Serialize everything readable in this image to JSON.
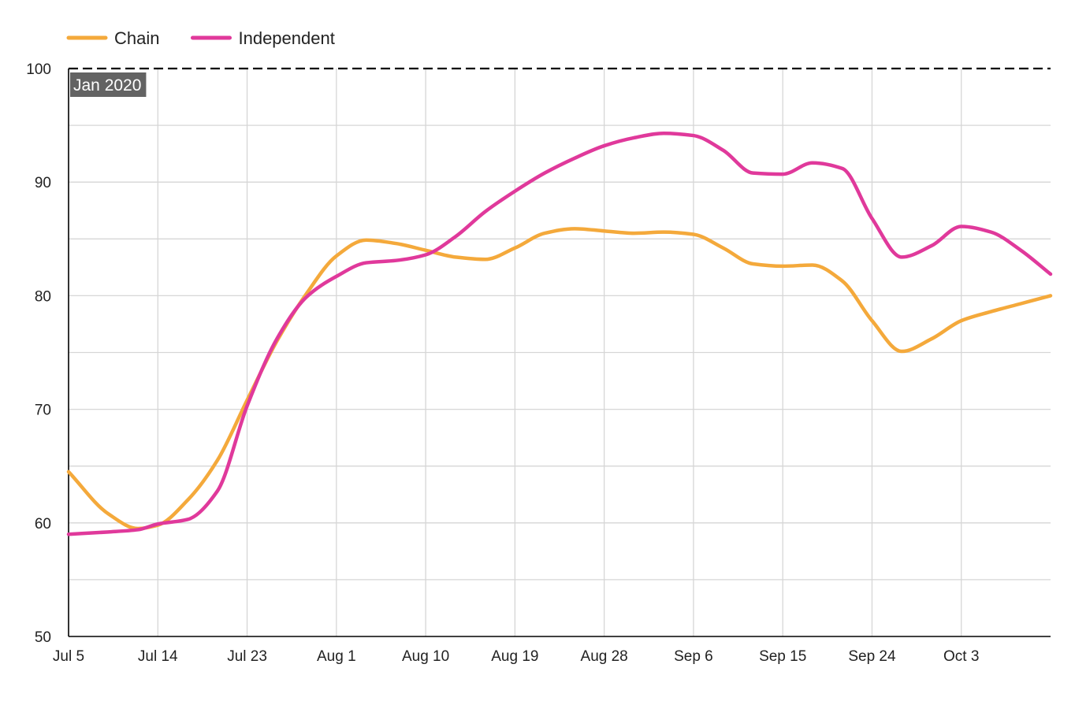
{
  "chart_data": {
    "type": "line",
    "title": "",
    "xlabel": "",
    "ylabel": "",
    "x_tick_labels": [
      "Jul 5",
      "Jul 14",
      "Jul 23",
      "Aug 1",
      "Aug 10",
      "Aug 19",
      "Aug 28",
      "Sep 6",
      "Sep 15",
      "Sep 24",
      "Oct 3"
    ],
    "x": [
      "2020-07-05",
      "2020-07-09",
      "2020-07-12",
      "2020-07-14",
      "2020-07-17",
      "2020-07-20",
      "2020-07-23",
      "2020-07-26",
      "2020-07-29",
      "2020-08-01",
      "2020-08-04",
      "2020-08-07",
      "2020-08-10",
      "2020-08-13",
      "2020-08-16",
      "2020-08-19",
      "2020-08-22",
      "2020-08-25",
      "2020-08-28",
      "2020-08-31",
      "2020-09-03",
      "2020-09-06",
      "2020-09-09",
      "2020-09-12",
      "2020-09-15",
      "2020-09-18",
      "2020-09-21",
      "2020-09-24",
      "2020-09-27",
      "2020-09-30",
      "2020-10-03",
      "2020-10-06",
      "2020-10-09",
      "2020-10-12"
    ],
    "series": [
      {
        "name": "Chain",
        "color": "#f4a93b",
        "values": [
          64.5,
          60.8,
          59.5,
          59.8,
          62.0,
          65.5,
          70.8,
          76.0,
          80.2,
          83.5,
          84.9,
          84.6,
          84.0,
          83.4,
          83.2,
          84.2,
          85.5,
          85.9,
          85.7,
          85.5,
          85.6,
          85.4,
          84.2,
          82.8,
          82.6,
          82.7,
          81.3,
          77.8,
          75.1,
          76.2,
          77.8,
          78.6,
          79.3,
          80.0
        ]
      },
      {
        "name": "Independent",
        "color": "#e0399b",
        "values": [
          59.0,
          59.2,
          59.4,
          59.9,
          60.3,
          62.8,
          70.3,
          76.2,
          79.9,
          81.7,
          82.9,
          83.1,
          83.6,
          85.2,
          87.4,
          89.2,
          90.8,
          92.1,
          93.2,
          93.9,
          94.3,
          94.1,
          92.8,
          90.8,
          90.7,
          91.7,
          91.2,
          86.8,
          83.4,
          84.4,
          86.1,
          85.6,
          84.0,
          81.9
        ]
      }
    ],
    "xlim": [
      "2020-07-05",
      "2020-10-12"
    ],
    "ylim": [
      50,
      100
    ],
    "y_ticks": [
      50,
      60,
      70,
      80,
      90,
      100
    ],
    "grid": true,
    "legend_position": "top-left",
    "reference_line": {
      "value": 100,
      "label": "Jan 2020",
      "color": "#000000",
      "style": "dashed"
    }
  }
}
